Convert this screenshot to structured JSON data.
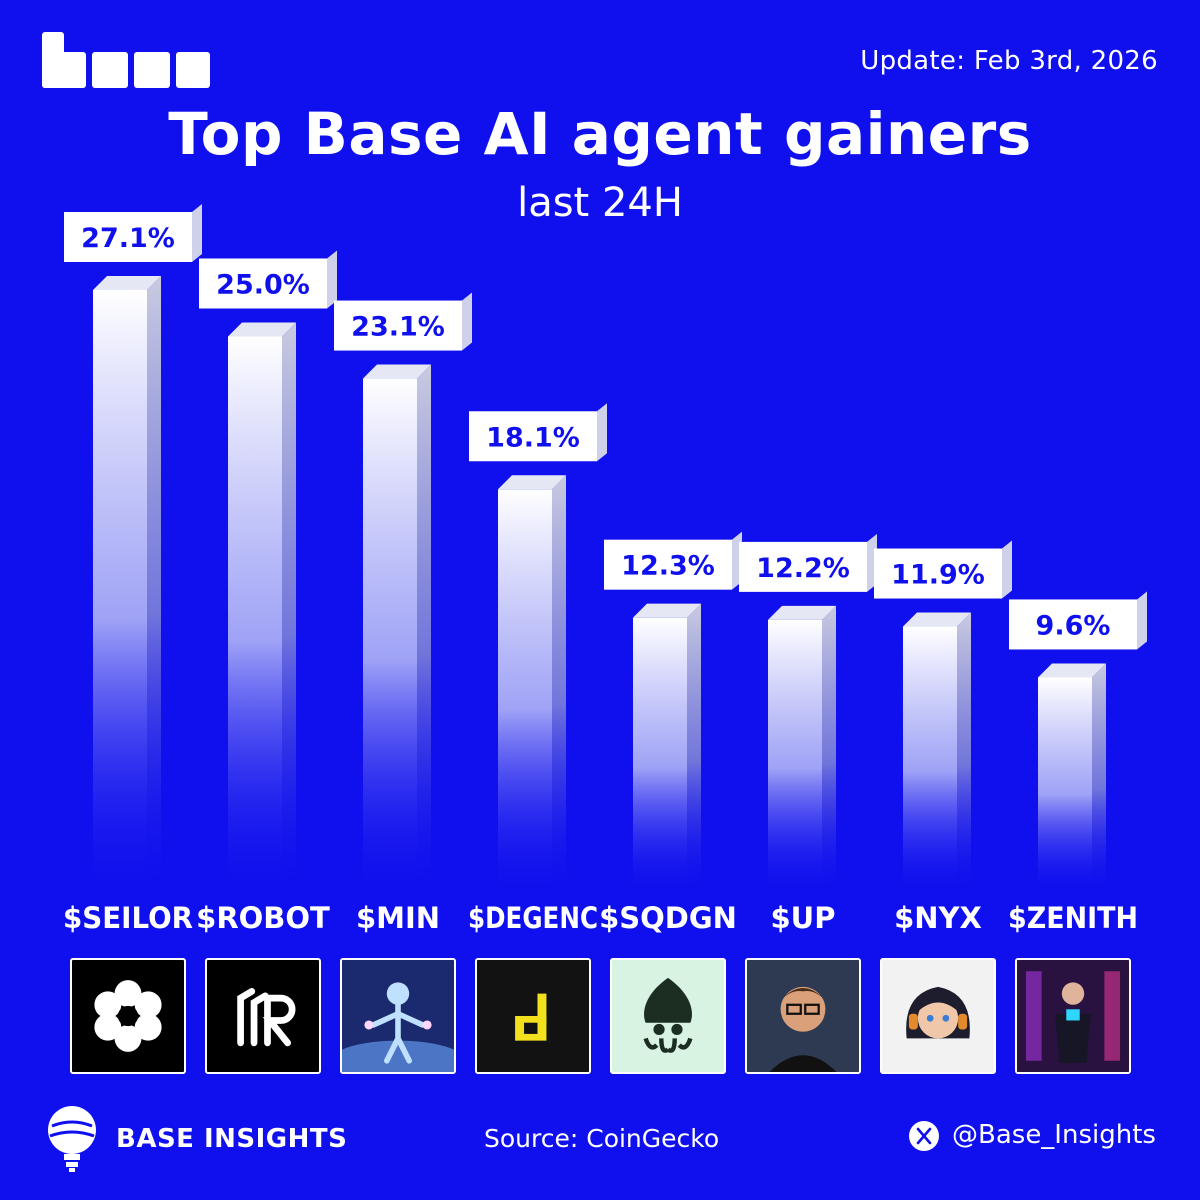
{
  "header": {
    "update": "Update: Feb 3rd, 2026",
    "title": "Top Base AI agent gainers",
    "subtitle": "last 24H"
  },
  "chart_data": {
    "type": "bar",
    "title": "Top Base AI agent gainers",
    "subtitle": "last 24H",
    "categories": [
      "$SEILOR",
      "$ROBOT",
      "$MIN",
      "$DEGENC",
      "$SQDGN",
      "$UP",
      "$NYX",
      "$ZENITH"
    ],
    "values": [
      27.1,
      25.0,
      23.1,
      18.1,
      12.3,
      12.2,
      11.9,
      9.6
    ],
    "value_labels": [
      "27.1%",
      "25.0%",
      "23.1%",
      "18.1%",
      "12.3%",
      "12.2%",
      "11.9%",
      "9.6%"
    ],
    "unit": "%",
    "ylim": [
      0,
      27.1
    ],
    "grid": false,
    "legend": "none"
  },
  "tokens": [
    {
      "symbol": "$SEILOR",
      "icon": "flower-lattice-icon",
      "tile_color": "#000000"
    },
    {
      "symbol": "$ROBOT",
      "icon": "robot-r-icon",
      "tile_color": "#000000"
    },
    {
      "symbol": "$MIN",
      "icon": "cosmic-figure-icon",
      "tile_color": "#1b2a6e"
    },
    {
      "symbol": "$DEGENC",
      "icon": "yellow-d-icon",
      "tile_color": "#121212"
    },
    {
      "symbol": "$SQDGN",
      "icon": "squid-icon",
      "tile_color": "#d8f3e2"
    },
    {
      "symbol": "$UP",
      "icon": "man-glasses-portrait-icon",
      "tile_color": "#2e3a52"
    },
    {
      "symbol": "$NYX",
      "icon": "girl-headphones-portrait-icon",
      "tile_color": "#f2f2f2"
    },
    {
      "symbol": "$ZENITH",
      "icon": "cyberpunk-portrait-icon",
      "tile_color": "#2a1240"
    }
  ],
  "footer": {
    "brand": "BASE INSIGHTS",
    "source": "Source: CoinGecko",
    "handle": "@Base_Insights"
  },
  "colors": {
    "background": "#1010ee",
    "bar_top": "#ffffff",
    "bar_bottom": "#1010ee",
    "label_text": "#1010ee"
  }
}
